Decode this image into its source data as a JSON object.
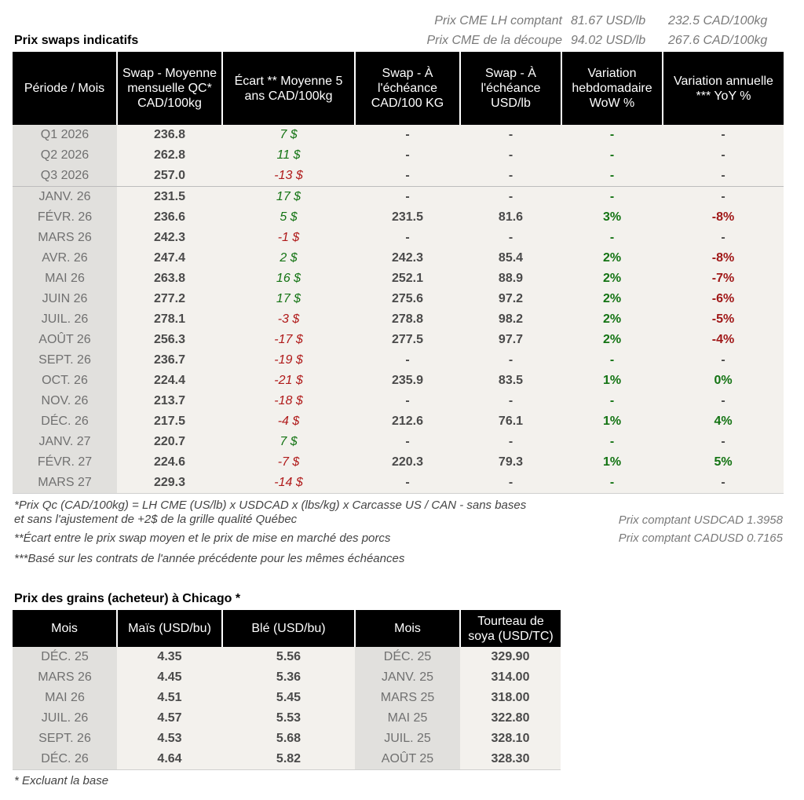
{
  "header": {
    "rows": [
      {
        "label": "Prix CME LH comptant",
        "usd": "81.67 USD/lb",
        "cad": "232.5 CAD/100kg"
      },
      {
        "label": "Prix CME de la découpe",
        "usd": "94.02 USD/lb",
        "cad": "267.6 CAD/100kg"
      }
    ]
  },
  "swaps": {
    "title": "Prix swaps indicatifs",
    "columns": [
      "Période / Mois",
      "Swap - Moyenne mensuelle QC* CAD/100kg",
      "Écart ** Moyenne 5 ans CAD/100kg",
      "Swap - À l'échéance CAD/100 KG",
      "Swap - À l'échéance USD/lb",
      "Variation hebdomadaire WoW %",
      "Variation annuelle *** YoY %"
    ],
    "rows": [
      {
        "period": "Q1 2026",
        "swap": "236.8",
        "ecart": "7 $",
        "cad": "-",
        "usd": "-",
        "wow": "-",
        "yoy": "-"
      },
      {
        "period": "Q2 2026",
        "swap": "262.8",
        "ecart": "11 $",
        "cad": "-",
        "usd": "-",
        "wow": "-",
        "yoy": "-"
      },
      {
        "period": "Q3 2026",
        "swap": "257.0",
        "ecart": "-13 $",
        "cad": "-",
        "usd": "-",
        "wow": "-",
        "yoy": "-"
      },
      {
        "period": "JANV. 26",
        "swap": "231.5",
        "ecart": "17 $",
        "cad": "-",
        "usd": "-",
        "wow": "-",
        "yoy": "-"
      },
      {
        "period": "FÉVR. 26",
        "swap": "236.6",
        "ecart": "5 $",
        "cad": "231.5",
        "usd": "81.6",
        "wow": "3%",
        "yoy": "-8%"
      },
      {
        "period": "MARS 26",
        "swap": "242.3",
        "ecart": "-1 $",
        "cad": "-",
        "usd": "-",
        "wow": "-",
        "yoy": "-"
      },
      {
        "period": "AVR. 26",
        "swap": "247.4",
        "ecart": "2 $",
        "cad": "242.3",
        "usd": "85.4",
        "wow": "2%",
        "yoy": "-8%"
      },
      {
        "period": "MAI 26",
        "swap": "263.8",
        "ecart": "16 $",
        "cad": "252.1",
        "usd": "88.9",
        "wow": "2%",
        "yoy": "-7%"
      },
      {
        "period": "JUIN 26",
        "swap": "277.2",
        "ecart": "17 $",
        "cad": "275.6",
        "usd": "97.2",
        "wow": "2%",
        "yoy": "-6%"
      },
      {
        "period": "JUIL. 26",
        "swap": "278.1",
        "ecart": "-3 $",
        "cad": "278.8",
        "usd": "98.2",
        "wow": "2%",
        "yoy": "-5%"
      },
      {
        "period": "AOÛT 26",
        "swap": "256.3",
        "ecart": "-17 $",
        "cad": "277.5",
        "usd": "97.7",
        "wow": "2%",
        "yoy": "-4%"
      },
      {
        "period": "SEPT. 26",
        "swap": "236.7",
        "ecart": "-19 $",
        "cad": "-",
        "usd": "-",
        "wow": "-",
        "yoy": "-"
      },
      {
        "period": "OCT. 26",
        "swap": "224.4",
        "ecart": "-21 $",
        "cad": "235.9",
        "usd": "83.5",
        "wow": "1%",
        "yoy": "0%"
      },
      {
        "period": "NOV. 26",
        "swap": "213.7",
        "ecart": "-18 $",
        "cad": "-",
        "usd": "-",
        "wow": "-",
        "yoy": "-"
      },
      {
        "period": "DÉC. 26",
        "swap": "217.5",
        "ecart": "-4 $",
        "cad": "212.6",
        "usd": "76.1",
        "wow": "1%",
        "yoy": "4%"
      },
      {
        "period": "JANV. 27",
        "swap": "220.7",
        "ecart": "7 $",
        "cad": "-",
        "usd": "-",
        "wow": "-",
        "yoy": "-"
      },
      {
        "period": "FÉVR. 27",
        "swap": "224.6",
        "ecart": "-7 $",
        "cad": "220.3",
        "usd": "79.3",
        "wow": "1%",
        "yoy": "5%"
      },
      {
        "period": "MARS 27",
        "swap": "229.3",
        "ecart": "-14 $",
        "cad": "-",
        "usd": "-",
        "wow": "-",
        "yoy": "-"
      }
    ]
  },
  "notes": {
    "n1a": "*Prix Qc (CAD/100kg) = LH CME (US/lb) x USDCAD x (lbs/kg) x Carcasse US / CAN - sans bases",
    "n1b": "et sans l'ajustement de +2$ de la grille qualité Québec",
    "n2": "**Écart entre le prix swap moyen et le prix de mise en marché des porcs",
    "n3": "***Basé sur les contrats de l'année précédente pour les mêmes échéances",
    "fx1": "Prix comptant USDCAD 1.3958",
    "fx2": "Prix comptant CADUSD 0.7165"
  },
  "grains": {
    "title": "Prix des grains (acheteur) à Chicago *",
    "columns": [
      "Mois",
      "Maïs (USD/bu)",
      "Blé (USD/bu)",
      "Mois",
      "Tourteau de soya (USD/TC)"
    ],
    "rows": [
      {
        "mois": "DÉC. 25",
        "mais": "4.35",
        "ble": "5.56",
        "mois2": "DÉC. 25",
        "soya": "329.90"
      },
      {
        "mois": "MARS 26",
        "mais": "4.45",
        "ble": "5.36",
        "mois2": "JANV. 25",
        "soya": "314.00"
      },
      {
        "mois": "MAI 26",
        "mais": "4.51",
        "ble": "5.45",
        "mois2": "MARS 25",
        "soya": "318.00"
      },
      {
        "mois": "JUIL. 26",
        "mais": "4.57",
        "ble": "5.53",
        "mois2": "MAI 25",
        "soya": "322.80"
      },
      {
        "mois": "SEPT. 26",
        "mais": "4.53",
        "ble": "5.68",
        "mois2": "JUIL. 25",
        "soya": "328.10"
      },
      {
        "mois": "DÉC. 26",
        "mais": "4.64",
        "ble": "5.82",
        "mois2": "AOÛT 25",
        "soya": "328.30"
      }
    ],
    "footnote": "* Excluant la base"
  }
}
